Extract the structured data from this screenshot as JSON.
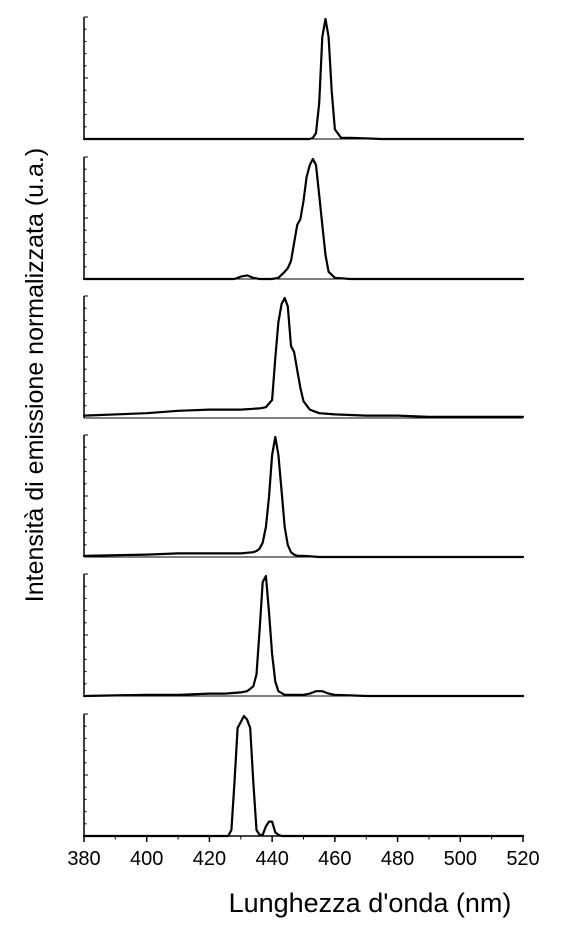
{
  "chart_data": {
    "type": "line",
    "layout": "stacked-panels",
    "xlabel": "Lunghezza d'onda (nm)",
    "ylabel": "Intensità di emissione normalizzata (u.a.)",
    "xlim": [
      380,
      520
    ],
    "x_ticks": [
      380,
      400,
      420,
      440,
      460,
      480,
      500,
      520
    ],
    "y_tick_labels": false,
    "ylim": [
      0,
      1.0
    ],
    "line_color": "#000000",
    "panels": [
      {
        "x": [
          380,
          452,
          453,
          454,
          455,
          456,
          457,
          458,
          459,
          460,
          462,
          465,
          475,
          520
        ],
        "y": [
          0,
          0,
          0.01,
          0.05,
          0.3,
          0.85,
          1.0,
          0.85,
          0.4,
          0.08,
          0.01,
          0.01,
          0,
          0
        ]
      },
      {
        "x": [
          380,
          428,
          430,
          432,
          434,
          436,
          440,
          442,
          444,
          445,
          446,
          447,
          448,
          449,
          450,
          451,
          452,
          453,
          454,
          455,
          456,
          457,
          458,
          460,
          465,
          475,
          520
        ],
        "y": [
          0,
          0,
          0.02,
          0.03,
          0.01,
          0,
          0,
          0.01,
          0.06,
          0.09,
          0.15,
          0.3,
          0.45,
          0.5,
          0.65,
          0.85,
          0.95,
          1.0,
          0.95,
          0.7,
          0.45,
          0.2,
          0.06,
          0.01,
          0,
          0,
          0
        ]
      },
      {
        "x": [
          380,
          400,
          410,
          420,
          430,
          436,
          438,
          440,
          441,
          442,
          443,
          444,
          445,
          446,
          447,
          448,
          449,
          450,
          452,
          455,
          460,
          470,
          480,
          490,
          500,
          520
        ],
        "y": [
          0.02,
          0.04,
          0.06,
          0.07,
          0.07,
          0.08,
          0.09,
          0.15,
          0.5,
          0.8,
          0.95,
          1.0,
          0.93,
          0.6,
          0.55,
          0.4,
          0.25,
          0.14,
          0.07,
          0.04,
          0.03,
          0.02,
          0.02,
          0.01,
          0.01,
          0.01
        ]
      },
      {
        "x": [
          380,
          400,
          410,
          420,
          430,
          434,
          435,
          436,
          437,
          438,
          439,
          440,
          441,
          442,
          443,
          444,
          445,
          446,
          447,
          448,
          450,
          455,
          460,
          470,
          480,
          490,
          500,
          520
        ],
        "y": [
          0.01,
          0.02,
          0.03,
          0.03,
          0.03,
          0.04,
          0.05,
          0.07,
          0.12,
          0.25,
          0.5,
          0.85,
          1.0,
          0.85,
          0.55,
          0.25,
          0.1,
          0.04,
          0.02,
          0.01,
          0.01,
          0,
          0,
          0,
          0,
          0,
          0,
          0
        ]
      },
      {
        "x": [
          380,
          400,
          410,
          420,
          425,
          430,
          432,
          434,
          435,
          436,
          437,
          438,
          439,
          440,
          441,
          442,
          444,
          446,
          450,
          452,
          454,
          456,
          458,
          460,
          470,
          490,
          520
        ],
        "y": [
          0,
          0.01,
          0.01,
          0.02,
          0.02,
          0.03,
          0.04,
          0.08,
          0.18,
          0.55,
          0.95,
          1.0,
          0.7,
          0.35,
          0.12,
          0.04,
          0.01,
          0.01,
          0.01,
          0.02,
          0.04,
          0.04,
          0.02,
          0.01,
          0,
          0,
          0
        ]
      },
      {
        "x": [
          380,
          424,
          426,
          427,
          428,
          429,
          430,
          431,
          432,
          433,
          434,
          435,
          436,
          437,
          438,
          439,
          440,
          441,
          442,
          443,
          445,
          520
        ],
        "y": [
          0,
          0,
          0,
          0.05,
          0.45,
          0.9,
          0.95,
          1.0,
          0.97,
          0.9,
          0.45,
          0.05,
          0.01,
          0.01,
          0.08,
          0.12,
          0.12,
          0.03,
          0.01,
          0,
          0,
          0
        ]
      }
    ]
  }
}
